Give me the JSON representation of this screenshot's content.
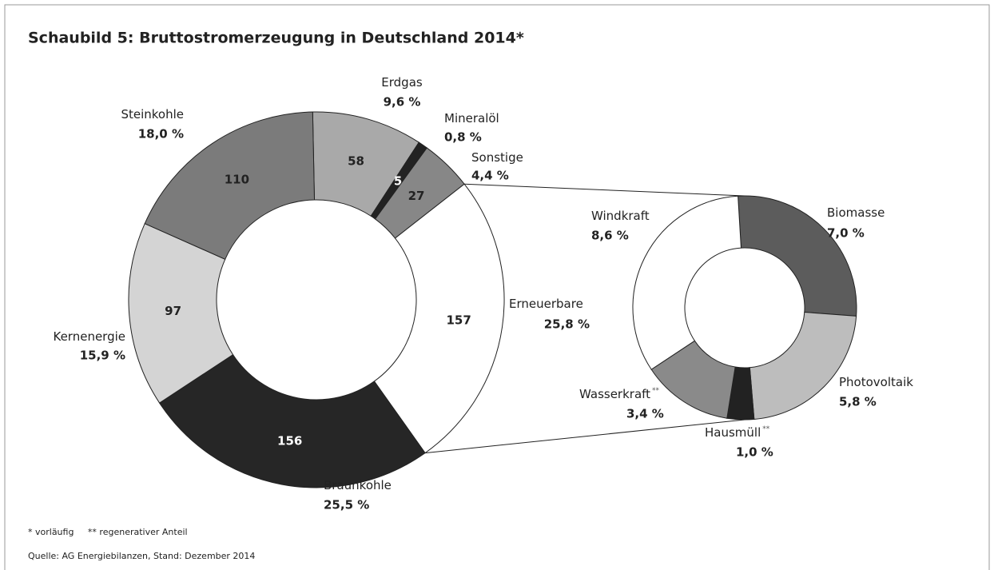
{
  "title": "Schaubild 5: Bruttostromerzeugung in Deutschland 2014*",
  "chart_data": [
    {
      "type": "donut",
      "categories": [
        "Erdgas",
        "Mineralöl",
        "Sonstige",
        "Erneuerbare",
        "Braunkohle",
        "Kernenergie",
        "Steinkohle"
      ],
      "values": [
        58,
        5,
        27,
        157,
        156,
        97,
        110
      ],
      "share_labels": [
        "9,6 %",
        "0,8 %",
        "4,4 %",
        "25,8 %",
        "25,5 %",
        "15,9 %",
        "18,0 %"
      ],
      "colors": [
        "#a9a9a9",
        "#222222",
        "#878787",
        "#ffffff",
        "#262626",
        "#d4d4d4",
        "#7b7b7b"
      ]
    },
    {
      "type": "donut",
      "categories": [
        "Biomasse",
        "Photovoltaik",
        "Hausmüll",
        "Wasserkraft",
        "Windkraft"
      ],
      "markers": [
        null,
        null,
        "**",
        "**",
        null
      ],
      "values": [
        7.0,
        5.8,
        1.0,
        3.4,
        8.6
      ],
      "value_labels": [
        "7,0 %",
        "5,8 %",
        "1,0 %",
        "3,4 %",
        "8,6 %"
      ],
      "colors": [
        "#5c5c5c",
        "#bdbdbd",
        "#222222",
        "#8a8a8a",
        "#ffffff"
      ]
    }
  ],
  "footnote": "* vorläufig     ** regenerativer Anteil",
  "source": "Quelle: AG Energiebilanzen, Stand: Dezember 2014"
}
